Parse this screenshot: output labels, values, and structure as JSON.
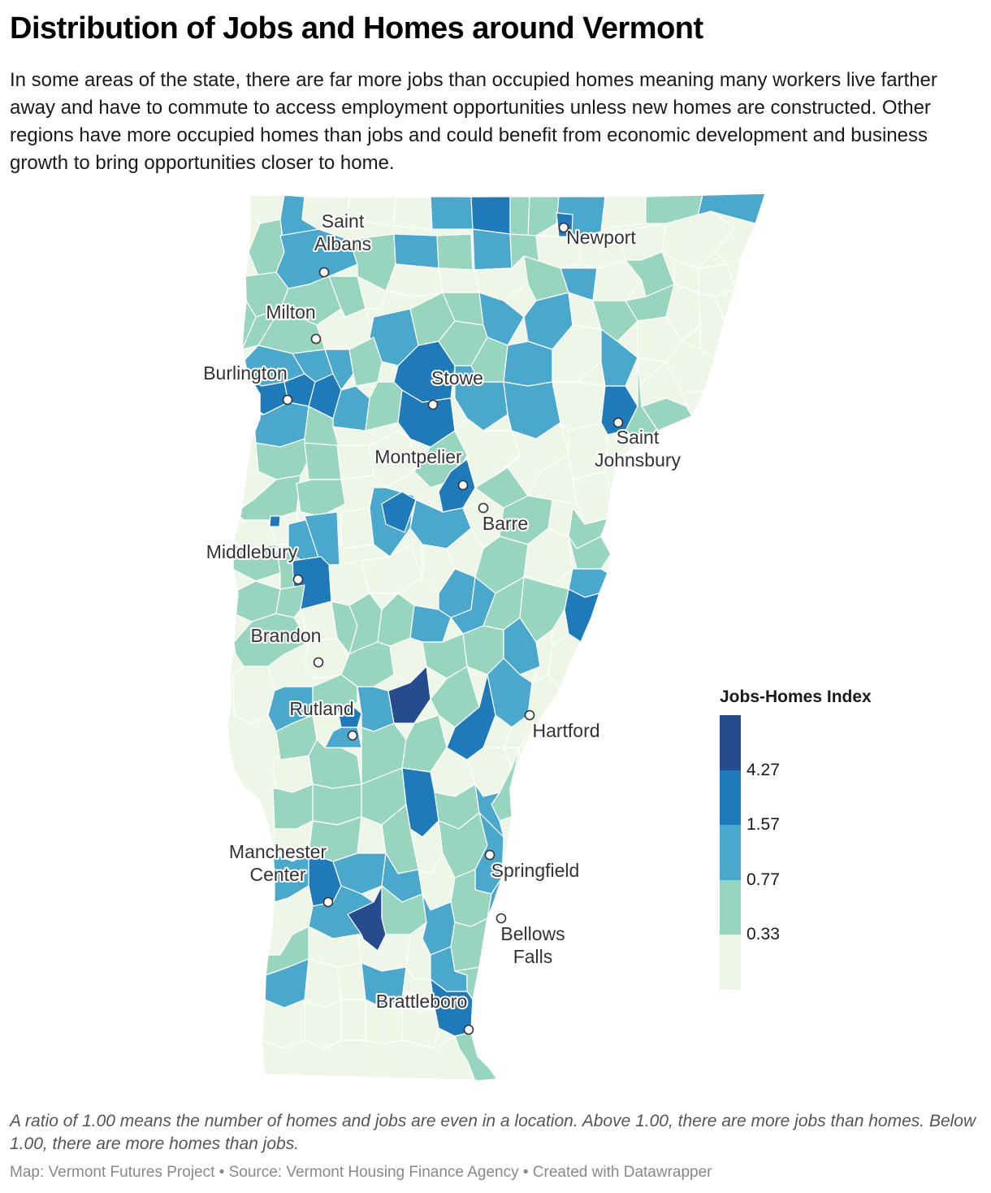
{
  "title": "Distribution of Jobs and Homes around Vermont",
  "subtitle": "In some areas of the state, there are far more jobs than occupied homes meaning many workers live farther away and have to commute to access employment opportunities unless new homes are constructed. Other regions have more occupied homes than jobs and could benefit from economic development and business growth to bring opportunities closer to home.",
  "map": {
    "region": "Vermont",
    "unit": "towns",
    "colors": {
      "class1": "#eef6e7",
      "class2": "#98d5bf",
      "class3": "#4aa8cd",
      "class4": "#1f7ab9",
      "class5": "#274c8d"
    },
    "cities": [
      {
        "name_lines": [
          "Saint",
          "Albans"
        ]
      },
      {
        "name_lines": [
          "Newport"
        ]
      },
      {
        "name_lines": [
          "Milton"
        ]
      },
      {
        "name_lines": [
          "Burlington"
        ]
      },
      {
        "name_lines": [
          "Stowe"
        ]
      },
      {
        "name_lines": [
          "Saint",
          "Johnsbury"
        ]
      },
      {
        "name_lines": [
          "Montpelier"
        ]
      },
      {
        "name_lines": [
          "Barre"
        ]
      },
      {
        "name_lines": [
          "Middlebury"
        ]
      },
      {
        "name_lines": [
          "Brandon"
        ]
      },
      {
        "name_lines": [
          "Rutland"
        ]
      },
      {
        "name_lines": [
          "Hartford"
        ]
      },
      {
        "name_lines": [
          "Manchester",
          "Center"
        ]
      },
      {
        "name_lines": [
          "Springfield"
        ]
      },
      {
        "name_lines": [
          "Bellows",
          "Falls"
        ]
      },
      {
        "name_lines": [
          "Brattleboro"
        ]
      }
    ]
  },
  "legend": {
    "title": "Jobs-Homes Index",
    "colors": [
      "#274c8d",
      "#1f7ab9",
      "#4aa8cd",
      "#98d5bf",
      "#eef6e7"
    ],
    "ticks": [
      "4.27",
      "1.57",
      "0.77",
      "0.33"
    ],
    "thresholds": [
      4.27,
      1.57,
      0.77,
      0.33
    ]
  },
  "note": "A ratio of 1.00 means the number of homes and jobs are even in a location. Above 1.00, there are more jobs than homes. Below 1.00, there are more homes than jobs.",
  "source": "Map: Vermont Futures Project • Source: Vermont Housing Finance Agency • Created with Datawrapper"
}
